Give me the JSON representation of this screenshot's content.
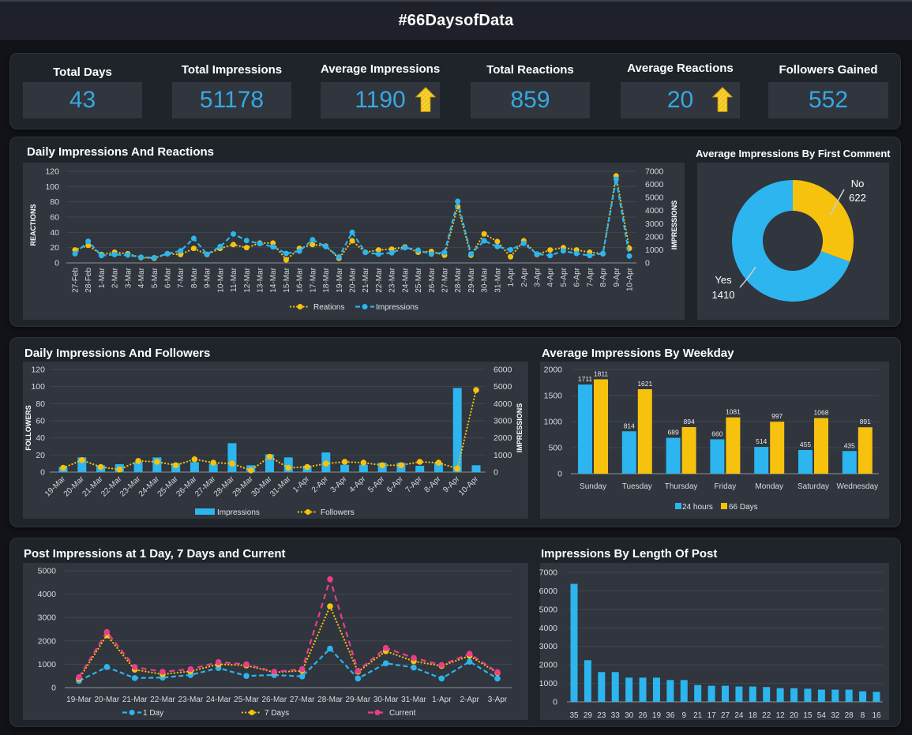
{
  "header": {
    "title": "#66DaysofData"
  },
  "colors": {
    "accent_blue": "#2cb5ee",
    "accent_yellow": "#f6c20e",
    "accent_pink": "#ec3d8c",
    "kpi_value": "#36a9e1"
  },
  "kpis": [
    {
      "label": "Total Days",
      "value": "43"
    },
    {
      "label": "Total Impressions",
      "value": "51178"
    },
    {
      "label": "Average Impressions",
      "value": "1190",
      "trend_icon": "up-arrow-icon"
    },
    {
      "label": "Total Reactions",
      "value": "859"
    },
    {
      "label": "Average Reactions",
      "value": "20",
      "trend_icon": "up-arrow-icon"
    },
    {
      "label": "Followers Gained",
      "value": "552"
    }
  ],
  "chart_data": [
    {
      "type": "line",
      "title": "Daily Impressions And Reactions",
      "categories": [
        "27-Feb",
        "28-Feb",
        "1-Mar",
        "2-Mar",
        "3-Mar",
        "4-Mar",
        "5-Mar",
        "6-Mar",
        "7-Mar",
        "8-Mar",
        "9-Mar",
        "10-Mar",
        "11-Mar",
        "12-Mar",
        "13-Mar",
        "14-Mar",
        "15-Mar",
        "16-Mar",
        "17-Mar",
        "18-Mar",
        "19-Mar",
        "20-Mar",
        "21-Mar",
        "22-Mar",
        "23-Mar",
        "24-Mar",
        "25-Mar",
        "26-Mar",
        "27-Mar",
        "28-Mar",
        "29-Mar",
        "30-Mar",
        "31-Mar",
        "1-Apr",
        "2-Apr",
        "3-Apr",
        "4-Apr",
        "5-Apr",
        "6-Apr",
        "7-Apr",
        "8-Apr",
        "9-Apr",
        "10-Apr"
      ],
      "series": [
        {
          "name": "Reations",
          "type": "line",
          "axis": "left",
          "style": "dotted",
          "color": "#f6c20e",
          "values": [
            17,
            23,
            11,
            14,
            12,
            7,
            6,
            12,
            11,
            19,
            11,
            19,
            24,
            20,
            26,
            26,
            4,
            19,
            24,
            22,
            6,
            29,
            14,
            17,
            18,
            21,
            14,
            15,
            10,
            74,
            10,
            38,
            28,
            8,
            29,
            11,
            17,
            20,
            17,
            14,
            12,
            114,
            19
          ]
        },
        {
          "name": "Impressions",
          "type": "line",
          "axis": "right",
          "style": "dashed",
          "color": "#2cb5ee",
          "values": [
            700,
            1650,
            560,
            640,
            600,
            440,
            400,
            700,
            920,
            1870,
            660,
            1250,
            2210,
            1710,
            1470,
            1230,
            720,
            900,
            1770,
            1250,
            450,
            2340,
            800,
            670,
            770,
            1170,
            970,
            670,
            800,
            4710,
            680,
            1690,
            1250,
            1000,
            1490,
            680,
            560,
            920,
            720,
            560,
            720,
            6400,
            520
          ]
        }
      ],
      "ylabel": "REACTIONS",
      "ylim": [
        0,
        120
      ],
      "yticks": [
        0,
        20,
        40,
        60,
        80,
        100,
        120
      ],
      "y2label": "IMPRESSIONS",
      "y2lim": [
        0,
        7000
      ],
      "y2ticks": [
        0,
        1000,
        2000,
        3000,
        4000,
        5000,
        6000,
        7000
      ],
      "grid": true,
      "legend": "bottom"
    },
    {
      "type": "pie",
      "title": "Average Impressions By First Comment",
      "donut": true,
      "slices": [
        {
          "label": "No",
          "value": 622,
          "color": "#f6c20e"
        },
        {
          "label": "Yes",
          "value": 1410,
          "color": "#2cb5ee"
        }
      ],
      "legend": "none"
    },
    {
      "type": "bar",
      "title": "Daily Impressions And Followers",
      "categories": [
        "19-Mar",
        "20-Mar",
        "21-Mar",
        "22-Mar",
        "23-Mar",
        "24-Mar",
        "25-Mar",
        "26-Mar",
        "27-Mar",
        "28-Mar",
        "29-Mar",
        "30-Mar",
        "31-Mar",
        "1-Apr",
        "2-Apr",
        "3-Apr",
        "4-Apr",
        "5-Apr",
        "6-Apr",
        "7-Apr",
        "8-Apr",
        "9-Apr",
        "10-Apr"
      ],
      "series": [
        {
          "name": "Impressions",
          "type": "bar",
          "axis": "right",
          "color": "#2cb5ee",
          "values": [
            300,
            860,
            400,
            460,
            585,
            860,
            520,
            585,
            490,
            1690,
            400,
            1040,
            860,
            370,
            1150,
            430,
            430,
            550,
            550,
            370,
            550,
            4920,
            400
          ]
        },
        {
          "name": "Followers",
          "type": "line",
          "axis": "left",
          "style": "dotted",
          "color": "#f6c20e",
          "values": [
            5,
            14,
            6,
            3,
            13,
            12,
            8,
            15,
            11,
            10,
            2,
            18,
            5,
            6,
            10,
            12,
            11,
            8,
            8,
            12,
            11,
            4,
            96
          ]
        }
      ],
      "ylabel": "FOLLOWERS",
      "ylim": [
        0,
        120
      ],
      "yticks": [
        0,
        20,
        40,
        60,
        80,
        100,
        120
      ],
      "y2label": "IMPRESSIONS",
      "y2lim": [
        0,
        6000
      ],
      "y2ticks": [
        0,
        1000,
        2000,
        3000,
        4000,
        5000,
        6000
      ],
      "grid": true,
      "legend": "bottom"
    },
    {
      "type": "bar",
      "title": "Average Impressions By Weekday",
      "categories": [
        "Sunday",
        "Tuesday",
        "Thursday",
        "Friday",
        "Monday",
        "Saturday",
        "Wednesday"
      ],
      "series": [
        {
          "name": "24 hours",
          "color": "#2cb5ee",
          "values": [
            1711,
            814,
            689,
            660,
            514,
            455,
            435
          ]
        },
        {
          "name": "66 Days",
          "color": "#f6c20e",
          "values": [
            1811,
            1621,
            894,
            1081,
            997,
            1068,
            891
          ]
        }
      ],
      "ylim": [
        0,
        2000
      ],
      "yticks": [
        0,
        500,
        1000,
        1500,
        2000
      ],
      "grid": true,
      "legend": "bottom",
      "data_labels": true
    },
    {
      "type": "line",
      "title": "Post Impressions at 1 Day, 7 Days and Current",
      "categories": [
        "19-Mar",
        "20-Mar",
        "21-Mar",
        "22-Mar",
        "23-Mar",
        "24-Mar",
        "25-Mar",
        "26-Mar",
        "27-Mar",
        "28-Mar",
        "29-Mar",
        "30-Mar",
        "31-Mar",
        "1-Apr",
        "2-Apr",
        "3-Apr"
      ],
      "series": [
        {
          "name": "1 Day",
          "type": "line",
          "axis": "left",
          "style": "dashed",
          "color": "#2cb5ee",
          "values": [
            290,
            880,
            410,
            430,
            540,
            840,
            500,
            540,
            480,
            1670,
            390,
            1040,
            860,
            390,
            1110,
            390
          ]
        },
        {
          "name": "7 Days",
          "type": "line",
          "axis": "left",
          "style": "dotted",
          "color": "#f6c20e",
          "values": [
            380,
            2240,
            770,
            570,
            700,
            1000,
            950,
            660,
            720,
            3480,
            680,
            1560,
            1130,
            930,
            1360,
            630
          ]
        },
        {
          "name": "Current",
          "type": "line",
          "axis": "left",
          "style": "longdash",
          "color": "#ec3d8c",
          "values": [
            450,
            2380,
            880,
            680,
            790,
            1090,
            1000,
            680,
            790,
            4640,
            720,
            1700,
            1270,
            970,
            1450,
            660
          ]
        }
      ],
      "ylim": [
        0,
        5000
      ],
      "yticks": [
        0,
        1000,
        2000,
        3000,
        4000,
        5000
      ],
      "grid": true,
      "legend": "bottom"
    },
    {
      "type": "bar",
      "title": "Impressions By Length Of Post",
      "categories": [
        "35",
        "29",
        "23",
        "33",
        "30",
        "26",
        "19",
        "36",
        "9",
        "21",
        "17",
        "27",
        "24",
        "18",
        "22",
        "12",
        "20",
        "15",
        "54",
        "32",
        "28",
        "8",
        "16"
      ],
      "series": [
        {
          "name": "Impressions",
          "type": "bar",
          "axis": "left",
          "color": "#2cb5ee",
          "values": [
            6380,
            2250,
            1610,
            1610,
            1310,
            1310,
            1310,
            1180,
            1180,
            910,
            870,
            870,
            830,
            830,
            800,
            740,
            740,
            710,
            660,
            660,
            660,
            570,
            540
          ]
        }
      ],
      "ylim": [
        0,
        7000
      ],
      "yticks": [
        0,
        1000,
        2000,
        3000,
        4000,
        5000,
        6000,
        7000
      ],
      "grid": true,
      "legend": "none"
    }
  ]
}
